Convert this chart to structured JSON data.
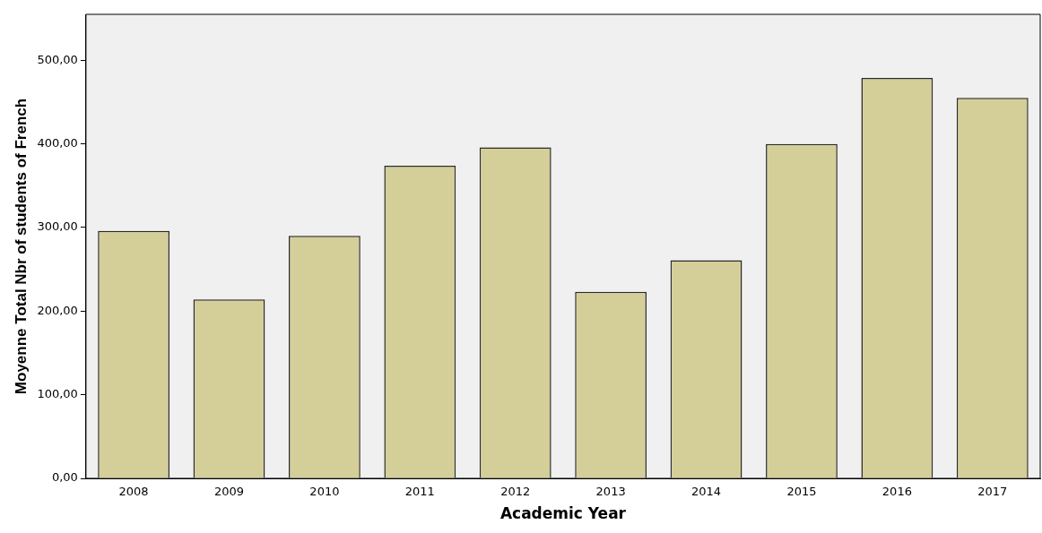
{
  "chart_data": {
    "type": "bar",
    "xlabel": "Academic Year",
    "ylabel": "Moyenne Total Nbr of students of French",
    "categories": [
      "2008",
      "2009",
      "2010",
      "2011",
      "2012",
      "2013",
      "2014",
      "2015",
      "2016",
      "2017"
    ],
    "values": [
      296,
      214,
      290,
      374,
      396,
      223,
      261,
      400,
      479,
      455
    ],
    "color": "#d4cf98",
    "ylim": [
      0,
      555
    ],
    "yticks": [
      {
        "value": 0,
        "label": "0,00"
      },
      {
        "value": 100,
        "label": "100,00"
      },
      {
        "value": 200,
        "label": "200,00"
      },
      {
        "value": 300,
        "label": "300,00"
      },
      {
        "value": 400,
        "label": "400,00"
      },
      {
        "value": 500,
        "label": "500,00"
      }
    ],
    "grid": false,
    "legend": false
  }
}
